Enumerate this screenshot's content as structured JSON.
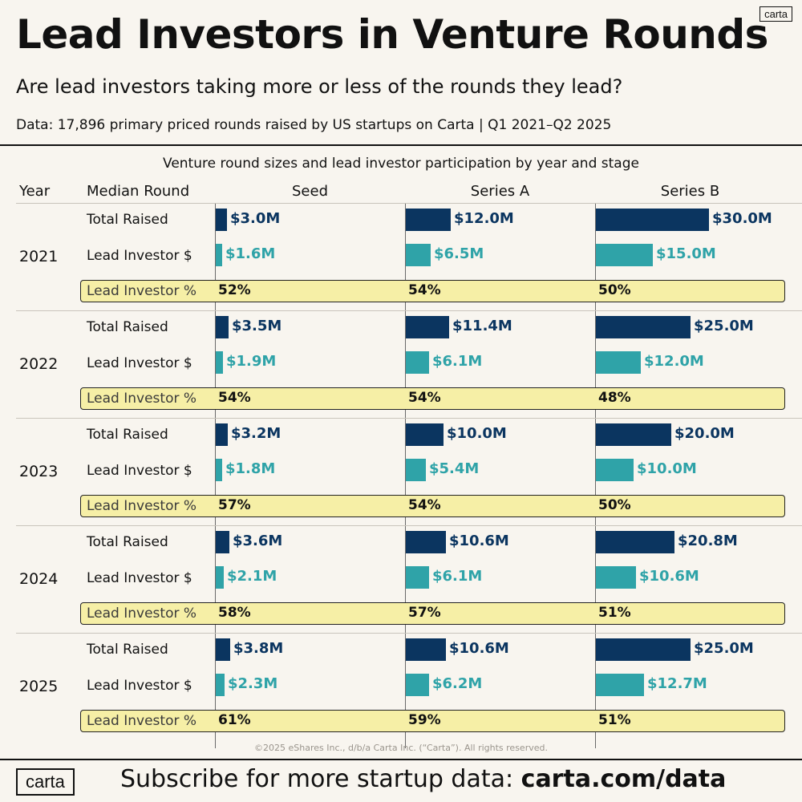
{
  "header": {
    "title": "Lead Investors in Venture Rounds",
    "subtitle": "Are lead investors taking more or less of the rounds they lead?",
    "source": "Data: 17,896 primary priced rounds raised by US startups on Carta | Q1 2021–Q2 2025",
    "logo_small": "carta"
  },
  "footer": {
    "copyright": "©2025 eShares Inc., d/b/a Carta Inc. (“Carta”). All rights reserved.",
    "logo": "carta",
    "cta_text": "Subscribe for more startup data: ",
    "cta_link": "carta.com/data"
  },
  "colors": {
    "total": "#0b3560",
    "lead": "#2fa3a8",
    "highlight": "#f6efa6"
  },
  "chart_data": {
    "type": "bar",
    "title": "Venture round sizes and lead investor participation by year and stage",
    "year_header": "Year",
    "metric_header": "Median Round",
    "row_labels": {
      "total": "Total Raised",
      "lead": "Lead Investor $",
      "pct": "Lead Investor %"
    },
    "stages": [
      "Seed",
      "Series A",
      "Series B"
    ],
    "x_max": {
      "Seed": 30,
      "Series A": 30,
      "Series B": 30
    },
    "years": [
      {
        "year": "2021",
        "total": [
          3.0,
          12.0,
          30.0
        ],
        "lead": [
          1.6,
          6.5,
          15.0
        ],
        "total_labels": [
          "$3.0M",
          "$12.0M",
          "$30.0M"
        ],
        "lead_labels": [
          "$1.6M",
          "$6.5M",
          "$15.0M"
        ],
        "pct_labels": [
          "52%",
          "54%",
          "50%"
        ]
      },
      {
        "year": "2022",
        "total": [
          3.5,
          11.4,
          25.0
        ],
        "lead": [
          1.9,
          6.1,
          12.0
        ],
        "total_labels": [
          "$3.5M",
          "$11.4M",
          "$25.0M"
        ],
        "lead_labels": [
          "$1.9M",
          "$6.1M",
          "$12.0M"
        ],
        "pct_labels": [
          "54%",
          "54%",
          "48%"
        ]
      },
      {
        "year": "2023",
        "total": [
          3.2,
          10.0,
          20.0
        ],
        "lead": [
          1.8,
          5.4,
          10.0
        ],
        "total_labels": [
          "$3.2M",
          "$10.0M",
          "$20.0M"
        ],
        "lead_labels": [
          "$1.8M",
          "$5.4M",
          "$10.0M"
        ],
        "pct_labels": [
          "57%",
          "54%",
          "50%"
        ]
      },
      {
        "year": "2024",
        "total": [
          3.6,
          10.6,
          20.8
        ],
        "lead": [
          2.1,
          6.1,
          10.6
        ],
        "total_labels": [
          "$3.6M",
          "$10.6M",
          "$20.8M"
        ],
        "lead_labels": [
          "$2.1M",
          "$6.1M",
          "$10.6M"
        ],
        "pct_labels": [
          "58%",
          "57%",
          "51%"
        ]
      },
      {
        "year": "2025",
        "total": [
          3.8,
          10.6,
          25.0
        ],
        "lead": [
          2.3,
          6.2,
          12.7
        ],
        "total_labels": [
          "$3.8M",
          "$10.6M",
          "$25.0M"
        ],
        "lead_labels": [
          "$2.3M",
          "$6.2M",
          "$12.7M"
        ],
        "pct_labels": [
          "61%",
          "59%",
          "51%"
        ]
      }
    ]
  }
}
